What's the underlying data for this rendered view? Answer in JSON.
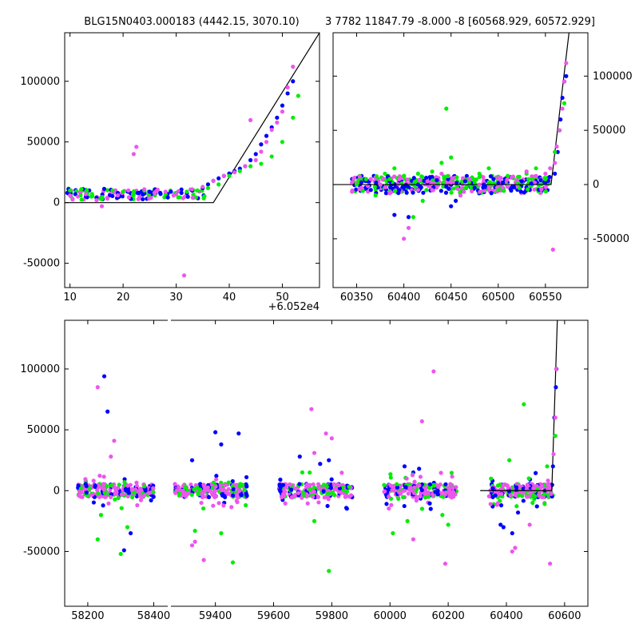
{
  "title_left": "BLG15N0403.000183 (4442.15, 3070.10)",
  "title_right": "3 7782 11847.79 -8.000 -8 [60568.929, 60572.929]",
  "offset_label": "+6.052e4",
  "colors": {
    "blue": "#0000ff",
    "green": "#00ee00",
    "violet": "#ee55ee",
    "model": "#000000"
  },
  "chart_data": [
    {
      "type": "scatter",
      "panel": "top-left-zoom",
      "xlim": [
        9,
        57
      ],
      "ylim": [
        -70000,
        140000
      ],
      "xticks": [
        10,
        20,
        30,
        40,
        50
      ],
      "yticks": [
        -50000,
        0,
        50000,
        100000
      ],
      "ytick_side": "left",
      "x_offset_label": "+6.052e4",
      "model_line": {
        "x": [
          9,
          37,
          57
        ],
        "y": [
          0,
          0,
          140000
        ]
      },
      "series": [
        {
          "color": "blue",
          "x": [
            9.5,
            11,
            13,
            15,
            17.5,
            19,
            21,
            23,
            25,
            27,
            29,
            31,
            33,
            35,
            36,
            37,
            38,
            39,
            40,
            41,
            42,
            43,
            44,
            45,
            46,
            47,
            48,
            49,
            50,
            51,
            52
          ],
          "y": [
            8000,
            7000,
            5000,
            4000,
            6000,
            8000,
            9000,
            8000,
            9000,
            8000,
            9000,
            8000,
            10000,
            12000,
            15000,
            18000,
            20000,
            22000,
            24000,
            26000,
            28000,
            30000,
            35000,
            40000,
            48000,
            55000,
            62000,
            70000,
            80000,
            90000,
            100000
          ]
        },
        {
          "color": "green",
          "x": [
            10,
            12,
            14,
            16,
            18,
            20,
            22,
            24,
            26,
            28,
            30,
            32,
            34,
            36,
            38,
            40,
            42,
            44,
            46,
            48,
            50,
            52,
            53
          ],
          "y": [
            10000,
            6000,
            5000,
            3000,
            10000,
            9000,
            7000,
            10000,
            6000,
            7000,
            8000,
            9000,
            10000,
            12000,
            15000,
            22000,
            26000,
            30000,
            32000,
            38000,
            50000,
            70000,
            88000
          ]
        },
        {
          "color": "violet",
          "x": [
            10,
            11.5,
            13,
            15,
            16,
            17,
            19,
            21,
            22,
            22.5,
            24,
            26,
            28,
            30,
            31.5,
            33,
            35,
            37,
            39,
            41,
            43,
            44,
            45,
            46,
            47,
            48,
            49,
            50,
            51,
            52
          ],
          "y": [
            6000,
            5000,
            7000,
            2000,
            -3000,
            4000,
            6000,
            10000,
            40000,
            46000,
            11000,
            8000,
            9000,
            7000,
            -60000,
            11000,
            13000,
            18000,
            22000,
            25000,
            30000,
            68000,
            35000,
            42000,
            50000,
            60000,
            66000,
            75000,
            95000,
            112000
          ]
        }
      ]
    },
    {
      "type": "scatter",
      "panel": "top-right-zoom",
      "xlim": [
        60325,
        60595
      ],
      "ylim": [
        -95000,
        140000
      ],
      "xticks": [
        60350,
        60400,
        60450,
        60500,
        60550
      ],
      "yticks": [
        -50000,
        0,
        50000,
        100000
      ],
      "ytick_side": "right",
      "model_line": {
        "x": [
          60325,
          60556,
          60575
        ],
        "y": [
          0,
          0,
          140000
        ]
      },
      "series": [
        {
          "color": "blue",
          "x": [
            60355,
            60365,
            60375,
            60385,
            60390,
            60395,
            60405,
            60415,
            60425,
            60435,
            60445,
            60450,
            60455,
            60465,
            60475,
            60485,
            60495,
            60505,
            60515,
            60525,
            60535,
            60545,
            60550,
            60560,
            60563,
            60566,
            60568,
            60570,
            60572
          ],
          "y": [
            2000,
            -5000,
            0,
            3000,
            -28000,
            -5000,
            -30000,
            0,
            2000,
            4000,
            -2000,
            -20000,
            -15000,
            3000,
            -3000,
            0,
            5000,
            2000,
            -2000,
            3000,
            1000,
            4000,
            2000,
            10000,
            30000,
            60000,
            80000,
            95000,
            100000
          ]
        },
        {
          "color": "green",
          "x": [
            60350,
            60360,
            60370,
            60380,
            60385,
            60390,
            60400,
            60410,
            60415,
            60420,
            60430,
            60440,
            60445,
            60450,
            60460,
            60470,
            60480,
            60490,
            60500,
            60510,
            60520,
            60530,
            60540,
            60550,
            60560,
            60565,
            60570
          ],
          "y": [
            0,
            5000,
            -10000,
            10000,
            5000,
            15000,
            8000,
            -30000,
            10000,
            -15000,
            12000,
            20000,
            70000,
            25000,
            -10000,
            5000,
            10000,
            15000,
            -5000,
            8000,
            2000,
            10000,
            15000,
            5000,
            30000,
            50000,
            75000
          ]
        },
        {
          "color": "violet",
          "x": [
            60345,
            60355,
            60365,
            60375,
            60385,
            60395,
            60400,
            60405,
            60415,
            60425,
            60430,
            60440,
            60450,
            60460,
            60470,
            60480,
            60490,
            60500,
            60510,
            60520,
            60530,
            60540,
            60550,
            60555,
            60558,
            60560,
            60562,
            60565,
            60568,
            60570,
            60572
          ],
          "y": [
            2000,
            -3000,
            5000,
            0,
            -8000,
            5000,
            -50000,
            -40000,
            -5000,
            3000,
            -5000,
            10000,
            2000,
            -10000,
            5000,
            0,
            -3000,
            6000,
            -2000,
            4000,
            12000,
            8000,
            10000,
            15000,
            -60000,
            20000,
            35000,
            50000,
            70000,
            95000,
            112000
          ]
        }
      ]
    },
    {
      "type": "scatter",
      "panel": "bottom-full",
      "segments": [
        {
          "xlim": [
            58130,
            58440
          ],
          "xticks": [
            58200,
            58400
          ]
        },
        {
          "xlim": [
            59250,
            60680
          ],
          "xticks": [
            59400,
            59600,
            59800,
            60000,
            60200,
            60400,
            60600
          ]
        }
      ],
      "ylim": [
        -95000,
        140000
      ],
      "yticks": [
        -50000,
        0,
        50000,
        100000
      ],
      "ytick_side": "left",
      "model_line": {
        "x": [
          60310,
          60556,
          60575
        ],
        "y": [
          0,
          0,
          140000
        ]
      },
      "seasons": [
        [
          58170,
          58400
        ],
        [
          59260,
          59510
        ],
        [
          59620,
          59870
        ],
        [
          59980,
          60230
        ],
        [
          60340,
          60560
        ]
      ],
      "series": [
        {
          "color": "blue",
          "x": [
            58250,
            58260,
            58310,
            58330,
            59320,
            59400,
            59420,
            59480,
            59690,
            59760,
            59790,
            60050,
            60100,
            60140,
            60380,
            60390,
            60420,
            60440,
            60560,
            60565,
            60570,
            60572
          ],
          "y": [
            94000,
            65000,
            -49000,
            -35000,
            25000,
            48000,
            38000,
            47000,
            28000,
            22000,
            25000,
            20000,
            18000,
            -15000,
            -28000,
            -30000,
            -35000,
            -18000,
            20000,
            60000,
            85000,
            100000
          ]
        },
        {
          "color": "green",
          "x": [
            58230,
            58240,
            58300,
            58320,
            59330,
            59420,
            59460,
            59740,
            59790,
            60010,
            60060,
            60180,
            60200,
            60410,
            60460,
            60490,
            60540,
            60568
          ],
          "y": [
            -40000,
            -20000,
            -52000,
            -30000,
            -33000,
            -35000,
            -59000,
            -25000,
            -66000,
            -35000,
            -25000,
            -20000,
            -28000,
            25000,
            71000,
            -10000,
            20000,
            45000
          ]
        },
        {
          "color": "violet",
          "x": [
            58230,
            58270,
            58280,
            58350,
            59320,
            59330,
            59360,
            59730,
            59740,
            59780,
            59800,
            60080,
            60110,
            60150,
            60190,
            60420,
            60430,
            60480,
            60550,
            60562,
            60568,
            60571
          ],
          "y": [
            85000,
            28000,
            41000,
            -12000,
            -45000,
            -42000,
            -57000,
            67000,
            31000,
            47000,
            43000,
            -40000,
            57000,
            98000,
            -60000,
            -50000,
            -47000,
            -28000,
            -60000,
            30000,
            60000,
            100000
          ]
        }
      ]
    }
  ]
}
